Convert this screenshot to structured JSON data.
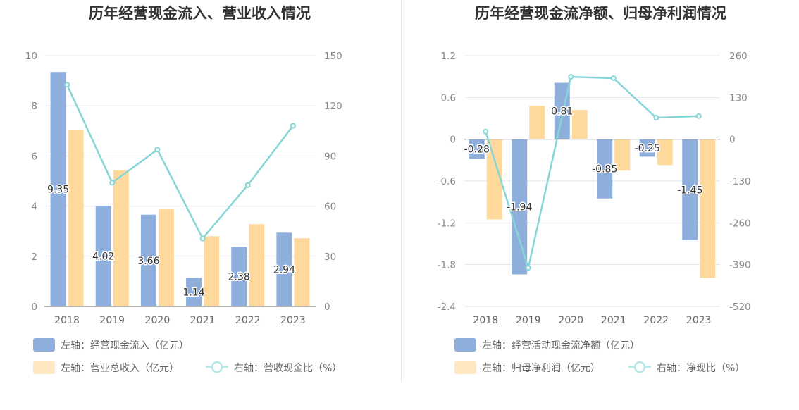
{
  "colors": {
    "bar1": "#8eaedc",
    "bar2": "#fed99b",
    "line": "#86d6d8",
    "grid": "#e3e6f1",
    "axis": "#666666"
  },
  "chart_data": [
    {
      "type": "bar",
      "title": "历年经营现金流入、营业收入情况",
      "categories": [
        "2018",
        "2019",
        "2020",
        "2021",
        "2022",
        "2023"
      ],
      "left_axis": {
        "ylim": [
          0,
          10
        ],
        "ticks": [
          "0",
          "2",
          "4",
          "6",
          "8",
          "10"
        ]
      },
      "right_axis": {
        "ylim": [
          0,
          150
        ],
        "ticks": [
          "0",
          "30",
          "60",
          "90",
          "120",
          "150"
        ]
      },
      "series": [
        {
          "name": "左轴：经营现金流入（亿元）",
          "kind": "bar",
          "axis": "left",
          "values": [
            9.35,
            4.02,
            3.66,
            1.14,
            2.38,
            2.94
          ],
          "labels": [
            "9.35",
            "4.02",
            "3.66",
            "1.14",
            "2.38",
            "2.94"
          ]
        },
        {
          "name": "左轴：营业总收入（亿元）",
          "kind": "bar",
          "axis": "left",
          "values": [
            7.05,
            5.43,
            3.9,
            2.8,
            3.28,
            2.72
          ]
        },
        {
          "name": "右轴：营收现金比（%）",
          "kind": "line",
          "axis": "right",
          "values": [
            132.6,
            74.0,
            93.8,
            40.7,
            72.6,
            108.1
          ]
        }
      ],
      "grid": true,
      "legend": "bottom"
    },
    {
      "type": "bar",
      "title": "历年经营现金流净额、归母净利润情况",
      "categories": [
        "2018",
        "2019",
        "2020",
        "2021",
        "2022",
        "2023"
      ],
      "left_axis": {
        "ylim": [
          -2.4,
          1.2
        ],
        "ticks": [
          "-2.4",
          "-1.8",
          "-1.2",
          "-0.6",
          "0",
          "0.6",
          "1.2"
        ]
      },
      "right_axis": {
        "ylim": [
          -520,
          260
        ],
        "ticks": [
          "-520",
          "-390",
          "-260",
          "-130",
          "0",
          "130",
          "260"
        ]
      },
      "series": [
        {
          "name": "左轴：经营活动现金流净额（亿元）",
          "kind": "bar",
          "axis": "left",
          "values": [
            -0.28,
            -1.94,
            0.81,
            -0.85,
            -0.25,
            -1.45
          ],
          "labels": [
            "-0.28",
            "-1.94",
            "0.81",
            "-0.85",
            "-0.25",
            "-1.45"
          ]
        },
        {
          "name": "左轴：归母净利润（亿元）",
          "kind": "bar",
          "axis": "left",
          "values": [
            -1.15,
            0.48,
            0.42,
            -0.45,
            -0.37,
            -1.99
          ]
        },
        {
          "name": "右轴：净现比（%）",
          "kind": "line",
          "axis": "right",
          "values": [
            24,
            -400,
            194,
            190,
            67,
            72
          ]
        }
      ],
      "grid": true,
      "legend": "bottom"
    }
  ]
}
